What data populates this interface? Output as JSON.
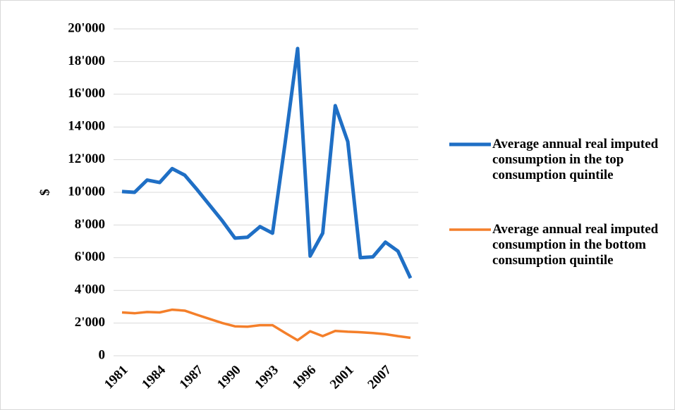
{
  "chart_data": {
    "type": "line",
    "y_label": "$",
    "categories": [
      "1981",
      null,
      null,
      "1984",
      null,
      null,
      "1987",
      null,
      null,
      "1990",
      null,
      null,
      "1993",
      null,
      null,
      "1996",
      null,
      null,
      "2001",
      null,
      null,
      "2007",
      null,
      null
    ],
    "series": [
      {
        "name": "Average annual real imputed consumption in the top consumption quintile",
        "color": "#1f6fc5",
        "values": [
          10050,
          10000,
          10750,
          10600,
          11450,
          11050,
          10150,
          9200,
          8250,
          7200,
          7250,
          7900,
          7500,
          13000,
          18800,
          6100,
          7500,
          15300,
          13100,
          6000,
          6050,
          6950,
          6400,
          4750
        ]
      },
      {
        "name": "Average annual real imputed consumption in the bottom consumption quintile",
        "color": "#f47f2a",
        "values": [
          2650,
          2600,
          2680,
          2650,
          2820,
          2760,
          2500,
          2250,
          2000,
          1800,
          1780,
          1870,
          1870,
          1400,
          950,
          1500,
          1200,
          1520,
          1470,
          1440,
          1390,
          1320,
          1200,
          1100
        ]
      }
    ],
    "ylim": [
      0,
      20000
    ],
    "yticks": [
      0,
      {
        "value": 2000,
        "label": "2'000"
      },
      {
        "value": 4000,
        "label": "4'000"
      },
      {
        "value": 6000,
        "label": "6'000"
      },
      {
        "value": 8000,
        "label": "8'000"
      },
      {
        "value": 10000,
        "label": "10'000"
      },
      {
        "value": 12000,
        "label": "12'000"
      },
      {
        "value": 14000,
        "label": "14'000"
      },
      {
        "value": 16000,
        "label": "16'000"
      },
      {
        "value": 18000,
        "label": "18'000"
      },
      {
        "value": 20000,
        "label": "20'000"
      }
    ],
    "grid": true
  }
}
